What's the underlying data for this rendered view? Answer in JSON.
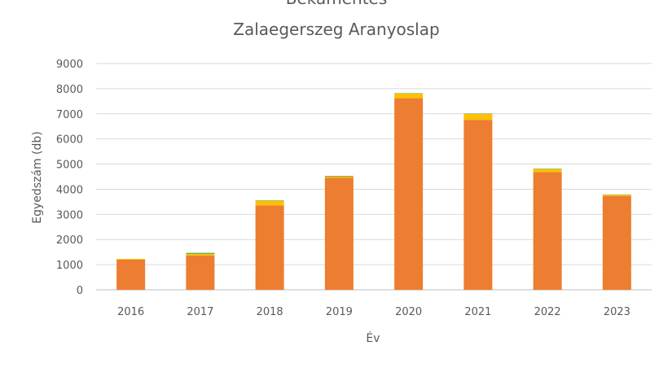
{
  "chart_data": {
    "type": "bar",
    "stacked": true,
    "title": "Békamentes",
    "subtitle": "Zalaegerszeg Aranyoslap",
    "xlabel": "Év",
    "ylabel": "Egyedszám (db)",
    "ylim": [
      0,
      9000
    ],
    "yticks": [
      0,
      1000,
      2000,
      3000,
      4000,
      5000,
      6000,
      7000,
      8000,
      9000
    ],
    "grid": true,
    "categories": [
      "2016",
      "2017",
      "2018",
      "2019",
      "2020",
      "2021",
      "2022",
      "2023"
    ],
    "series": [
      {
        "color": "#ED7D31",
        "values": [
          1200,
          1360,
          3360,
          4460,
          7620,
          6760,
          4680,
          3730
        ]
      },
      {
        "color": "#FFC000",
        "values": [
          30,
          60,
          180,
          40,
          180,
          230,
          120,
          50
        ]
      },
      {
        "color": "#70AD47",
        "values": [
          0,
          50,
          20,
          30,
          20,
          20,
          20,
          10
        ]
      }
    ]
  }
}
